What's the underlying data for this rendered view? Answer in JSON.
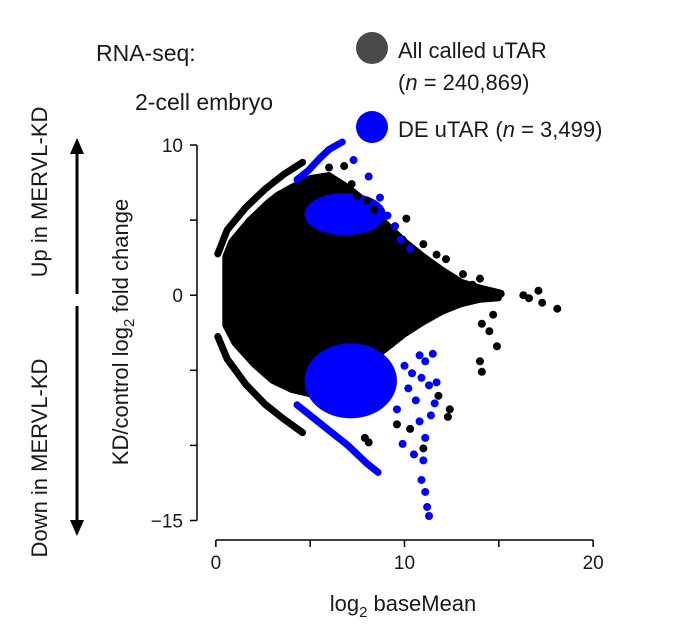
{
  "header": {
    "assay_label": "RNA-seq:",
    "sample_label": "2-cell embryo"
  },
  "side_labels": {
    "up": "Up in MERVL-KD",
    "down": "Down in MERVL-KD"
  },
  "legend": {
    "all": {
      "label": "All called uTAR",
      "count_prefix": "(",
      "n": "n",
      "count_suffix": " = 240,869)",
      "color": "#000000"
    },
    "de": {
      "label_prefix": "DE uTAR (",
      "n": "n",
      "label_suffix": " = 3,499)",
      "color": "#0000ff"
    }
  },
  "chart_data": {
    "type": "scatter",
    "title": "",
    "xlabel": "log2 baseMean",
    "xlabel_parts": {
      "pre": "log",
      "sub": "2",
      "post": " baseMean"
    },
    "ylabel": "KD/control log2 fold change",
    "ylabel_parts": {
      "pre": "KD/control log",
      "sub": "2",
      "post": " fold change"
    },
    "xlim": [
      -1,
      21
    ],
    "ylim": [
      -15.5,
      11
    ],
    "x_ticks": [
      0,
      10,
      20
    ],
    "x_tick_labels": [
      "0",
      "10",
      "20"
    ],
    "y_ticks": [
      10,
      0,
      -15
    ],
    "y_tick_labels": [
      "10",
      "0",
      "−15"
    ],
    "y_minor_ticks": [
      5,
      -5,
      -10
    ],
    "grid": false,
    "series": [
      {
        "name": "All called uTAR",
        "color": "#000000",
        "envelope_upper": [
          [
            0.5,
            2.8
          ],
          [
            1,
            4.0
          ],
          [
            2,
            5.4
          ],
          [
            3,
            6.5
          ],
          [
            4,
            7.2
          ],
          [
            5,
            7.8
          ],
          [
            6,
            8.0
          ],
          [
            7,
            7.2
          ],
          [
            8,
            6.2
          ],
          [
            9,
            4.8
          ],
          [
            10,
            3.6
          ],
          [
            11,
            2.6
          ],
          [
            12,
            1.7
          ],
          [
            13,
            0.9
          ],
          [
            14,
            0.5
          ],
          [
            15,
            0.2
          ]
        ],
        "envelope_lower": [
          [
            0.5,
            -2.0
          ],
          [
            1,
            -3.2
          ],
          [
            2,
            -4.6
          ],
          [
            3,
            -5.7
          ],
          [
            4,
            -6.3
          ],
          [
            5,
            -6.6
          ],
          [
            6,
            -6.3
          ],
          [
            7,
            -5.4
          ],
          [
            8,
            -4.5
          ],
          [
            9,
            -3.6
          ],
          [
            10,
            -2.6
          ],
          [
            11,
            -1.8
          ],
          [
            12,
            -1.1
          ],
          [
            13,
            -0.6
          ],
          [
            14,
            -0.3
          ],
          [
            15,
            -0.2
          ]
        ],
        "upper_arc": [
          [
            0.5,
            1.5
          ],
          [
            1,
            3.1
          ],
          [
            2,
            4.6
          ],
          [
            3,
            5.8
          ],
          [
            4,
            6.8
          ],
          [
            5,
            7.6
          ]
        ],
        "lower_arc": [
          [
            0.5,
            -1.5
          ],
          [
            1,
            -3.0
          ],
          [
            2,
            -4.7
          ],
          [
            3,
            -6.0
          ],
          [
            4,
            -7.0
          ],
          [
            5,
            -7.9
          ]
        ],
        "points": [
          [
            6.0,
            8.5
          ],
          [
            6.8,
            8.6
          ],
          [
            7.2,
            7.4
          ],
          [
            7.5,
            6.6
          ],
          [
            8.0,
            6.3
          ],
          [
            8.4,
            5.7
          ],
          [
            10.1,
            5.1
          ],
          [
            9.9,
            3.7
          ],
          [
            11.0,
            3.4
          ],
          [
            11.7,
            2.7
          ],
          [
            12.2,
            2.4
          ],
          [
            13.1,
            1.4
          ],
          [
            13.6,
            0.7
          ],
          [
            14.0,
            1.1
          ],
          [
            14.6,
            0.2
          ],
          [
            15.1,
            0.1
          ],
          [
            16.3,
            0.0
          ],
          [
            16.6,
            -0.2
          ],
          [
            17.1,
            0.3
          ],
          [
            17.3,
            -0.5
          ],
          [
            18.1,
            -0.9
          ],
          [
            14.7,
            -1.3
          ],
          [
            14.1,
            -1.9
          ],
          [
            14.5,
            -2.4
          ],
          [
            14.9,
            -3.4
          ],
          [
            14.0,
            -4.4
          ],
          [
            14.1,
            -5.1
          ],
          [
            11.8,
            -6.7
          ],
          [
            12.4,
            -7.6
          ],
          [
            12.3,
            -8.1
          ],
          [
            10.3,
            -8.9
          ],
          [
            9.6,
            -8.6
          ],
          [
            7.9,
            -9.5
          ],
          [
            11.0,
            -10.2
          ],
          [
            8.1,
            -9.8
          ]
        ]
      },
      {
        "name": "DE uTAR",
        "color": "#0000ff",
        "arc_upper": [
          [
            4.3,
            7.7
          ],
          [
            4.9,
            8.3
          ],
          [
            5.5,
            9.1
          ],
          [
            6.0,
            9.7
          ],
          [
            6.7,
            10.2
          ]
        ],
        "arc_lower": [
          [
            4.3,
            -7.3
          ],
          [
            5,
            -8.0
          ],
          [
            6,
            -9.0
          ],
          [
            7,
            -10.0
          ],
          [
            8,
            -11.2
          ],
          [
            8.6,
            -11.8
          ]
        ],
        "cloud_upper": {
          "x": [
            4.7,
            9.0
          ],
          "y": [
            4.0,
            6.8
          ]
        },
        "cloud_lower": {
          "x": [
            4.7,
            9.6
          ],
          "y": [
            -8.2,
            -3.2
          ]
        },
        "points": [
          [
            7.3,
            9.0
          ],
          [
            8.1,
            7.9
          ],
          [
            8.7,
            6.5
          ],
          [
            9.1,
            5.3
          ],
          [
            9.5,
            4.6
          ],
          [
            9.8,
            3.7
          ],
          [
            10.3,
            3.1
          ],
          [
            10.0,
            -4.7
          ],
          [
            10.4,
            -5.2
          ],
          [
            10.8,
            -4.0
          ],
          [
            10.9,
            -5.5
          ],
          [
            11.1,
            -4.4
          ],
          [
            11.3,
            -6.0
          ],
          [
            11.5,
            -3.9
          ],
          [
            11.7,
            -5.8
          ],
          [
            10.6,
            -7.0
          ],
          [
            10.8,
            -8.4
          ],
          [
            11.1,
            -9.5
          ],
          [
            11.0,
            -11.0
          ],
          [
            10.9,
            -12.3
          ],
          [
            11.1,
            -13.1
          ],
          [
            11.2,
            -14.1
          ],
          [
            11.3,
            -14.7
          ],
          [
            10.5,
            -10.6
          ],
          [
            9.9,
            -9.9
          ],
          [
            11.4,
            -8.0
          ],
          [
            11.6,
            -7.2
          ],
          [
            9.6,
            -7.6
          ],
          [
            10.2,
            -6.2
          ]
        ]
      }
    ]
  }
}
